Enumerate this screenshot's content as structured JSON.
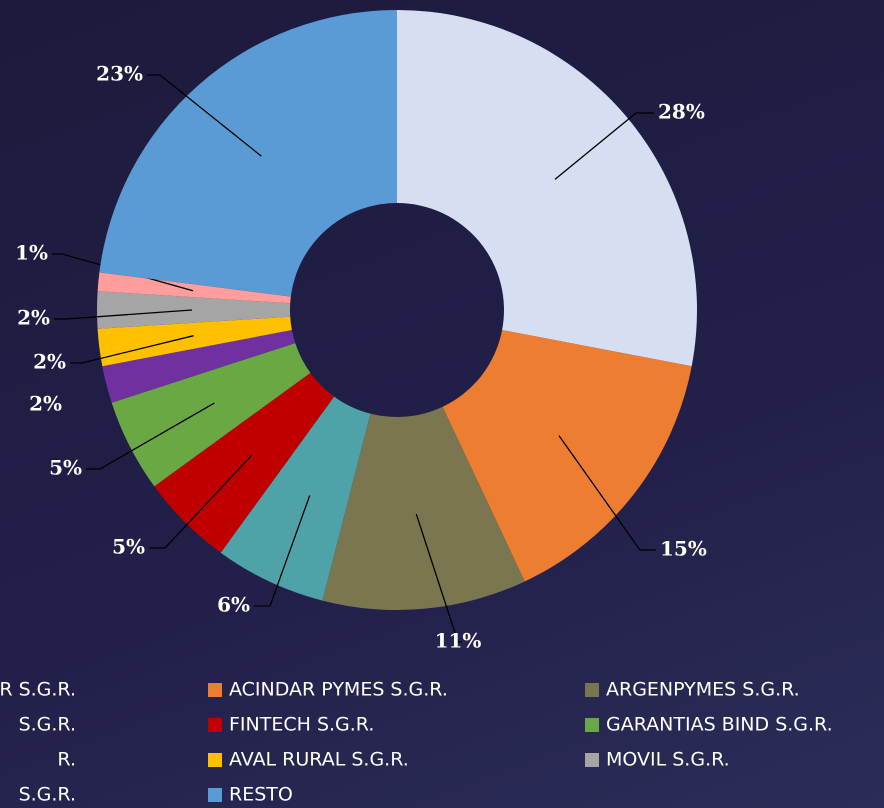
{
  "chart_data": {
    "type": "donut",
    "series": [
      {
        "name": "R S.G.R.",
        "color": "#d5dff1",
        "value": 28,
        "value_label": "28%"
      },
      {
        "name": "ACINDAR PYMES S.G.R.",
        "color": "#ed7d31",
        "value": 15,
        "value_label": "15%"
      },
      {
        "name": "ARGENPYMES S.G.R.",
        "color": "#7a7650",
        "value": 11,
        "value_label": "11%"
      },
      {
        "name": "S.G.R.",
        "color": "#4fa3a8",
        "value": 6,
        "value_label": "6%"
      },
      {
        "name": "FINTECH S.G.R.",
        "color": "#c00000",
        "value": 5,
        "value_label": "5%"
      },
      {
        "name": "GARANTIAS BIND S.G.R.",
        "color": "#6aa843",
        "value": 5,
        "value_label": "5%"
      },
      {
        "name": "R.",
        "color": "#7030a0",
        "value": 2,
        "value_label": "2%"
      },
      {
        "name": "AVAL RURAL S.G.R.",
        "color": "#ffc000",
        "value": 2,
        "value_label": "2%"
      },
      {
        "name": "MOVIL S.G.R.",
        "color": "#a5a5a5",
        "value": 2,
        "value_label": "2%"
      },
      {
        "name": "S.G.R.",
        "color": "#ff9c9c",
        "value": 1,
        "value_label": "1%"
      },
      {
        "name": "RESTO",
        "color": "#5b9bd5",
        "value": 23,
        "value_label": "23%"
      }
    ]
  }
}
